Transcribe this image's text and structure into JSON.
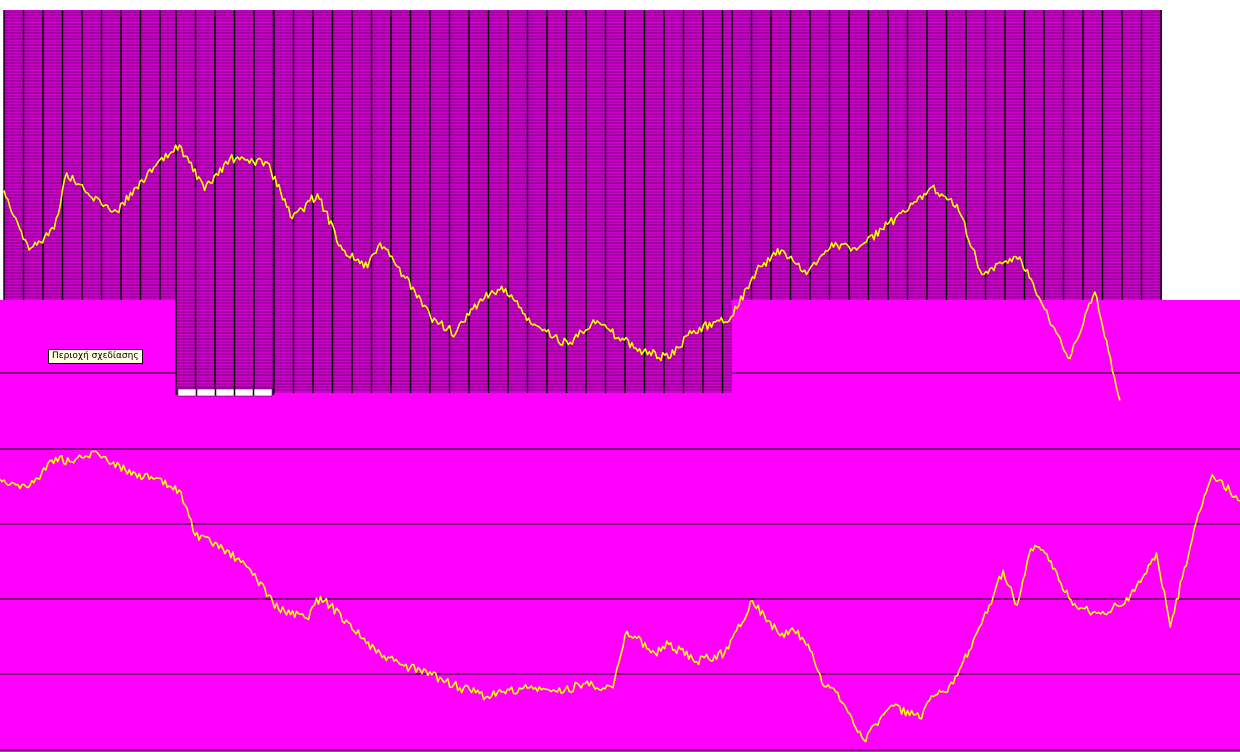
{
  "colors": {
    "plot_area": "#ff00ff",
    "upper_grid_fill": "#d000d0",
    "upper_grid_lines": "#000000",
    "series": "#ffff00",
    "gridline": "#000000",
    "top_bar": "#ffffff"
  },
  "tooltip": {
    "text": "Περιοχή σχεδίασης"
  },
  "chart_data": [
    {
      "type": "line",
      "panel": "upper",
      "title": "",
      "xlabel": "",
      "ylabel": "",
      "grid": "dense vertical column cells",
      "series": [
        {
          "color": "#ffff00",
          "x": [
            0,
            2,
            4,
            5,
            7,
            9,
            11,
            14,
            16,
            18,
            21,
            23,
            25,
            27,
            29,
            30,
            32,
            34,
            36,
            38,
            40,
            42,
            45,
            47,
            49,
            51,
            53,
            55,
            58,
            60,
            62,
            64,
            66,
            68,
            70,
            72,
            74,
            76,
            78,
            81,
            83,
            85,
            87,
            89
          ],
          "y": [
            57,
            40,
            46,
            62,
            55,
            51,
            60,
            70,
            57,
            66,
            65,
            49,
            56,
            40,
            35,
            42,
            32,
            21,
            16,
            26,
            29,
            19,
            13,
            20,
            15,
            11,
            9,
            17,
            21,
            34,
            40,
            33,
            42,
            40,
            46,
            51,
            58,
            53,
            33,
            38,
            23,
            9,
            28,
            -3
          ]
        }
      ]
    },
    {
      "type": "line",
      "panel": "lower",
      "title": "",
      "xlabel": "",
      "ylabel": "",
      "grid": "horizontal lines",
      "series": [
        {
          "color": "#ffff00",
          "x": [
            0,
            2,
            4,
            5,
            7,
            9,
            11,
            13,
            14,
            16,
            18,
            20,
            22,
            23,
            25,
            27,
            29,
            31,
            33,
            35,
            36,
            38,
            40,
            42,
            44,
            45,
            47,
            48,
            50,
            52,
            54,
            56,
            57,
            58,
            59,
            60,
            61,
            62,
            64,
            66,
            67,
            68,
            69,
            70,
            71,
            72,
            73,
            74,
            75,
            77,
            79,
            81,
            83,
            84,
            86,
            87,
            89
          ],
          "y": [
            60,
            58,
            65,
            64,
            66,
            62,
            60,
            57,
            47,
            44,
            39,
            30,
            28,
            33,
            27,
            20,
            17,
            15,
            12,
            10,
            11,
            12,
            11,
            13,
            12,
            25,
            20,
            22,
            18,
            20,
            32,
            24,
            25,
            22,
            13,
            11,
            6,
            0,
            8,
            5,
            10,
            11,
            17,
            24,
            31,
            39,
            31,
            44,
            43,
            31,
            29,
            32,
            43,
            26,
            52,
            61,
            55
          ]
        }
      ]
    }
  ]
}
